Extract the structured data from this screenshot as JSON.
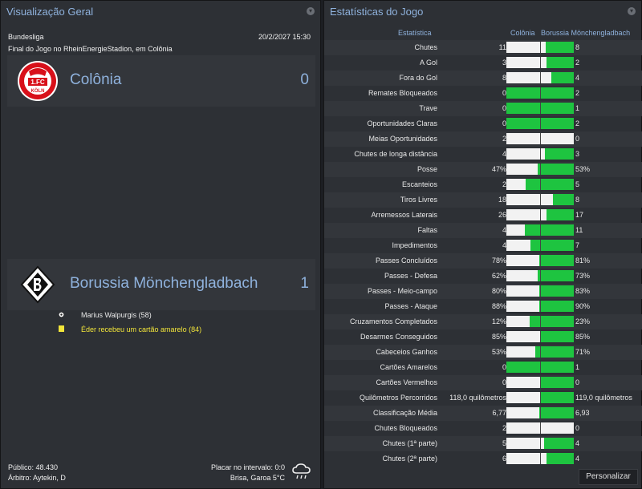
{
  "overview": {
    "title": "Visualização Geral",
    "competition": "Bundesliga",
    "datetime": "20/2/2027 15:30",
    "venue": "Final do Jogo no RheinEnergieStadion, em Colônia",
    "home": {
      "name": "Colônia",
      "score": "0",
      "badge_text": "1.FC",
      "badge_sub": "KÖLN"
    },
    "away": {
      "name": "Borussia Mönchengladbach",
      "score": "1"
    },
    "events": [
      {
        "icon": "ball-icon",
        "text": "Marius Walpurgis (58)",
        "color": "#f0f0f0"
      },
      {
        "icon": "yellow-card-icon",
        "text": "Éder recebeu um cartão amarelo (84)",
        "color": "#f2e53a"
      }
    ],
    "attendance": "Público: 48.430",
    "referee": "Árbitro: Aytekin, D",
    "halftime": "Placar no intervalo: 0:0",
    "weather": "Brisa, Garoa 5°C"
  },
  "stats": {
    "title": "Estatísticas do Jogo",
    "col_stat": "Estatística",
    "col_home": "Colônia",
    "col_away": "Borussia Mönchengladbach",
    "button": "Personalizar",
    "home_color": "#f2f2f2",
    "away_color": "#1ec440",
    "rows": [
      {
        "label": "Chutes",
        "home": "11",
        "away": "8",
        "share": 0.42
      },
      {
        "label": "A Gol",
        "home": "3",
        "away": "2",
        "share": 0.4
      },
      {
        "label": "Fora do Gol",
        "home": "8",
        "away": "4",
        "share": 0.33
      },
      {
        "label": "Remates Bloqueados",
        "home": "0",
        "away": "2",
        "share": 1.0
      },
      {
        "label": "Trave",
        "home": "0",
        "away": "1",
        "share": 1.0
      },
      {
        "label": "Oportunidades Claras",
        "home": "0",
        "away": "2",
        "share": 1.0
      },
      {
        "label": "Meias Oportunidades",
        "home": "2",
        "away": "0",
        "share": 0.0
      },
      {
        "label": "Chutes de longa distância",
        "home": "4",
        "away": "3",
        "share": 0.43
      },
      {
        "label": "Posse",
        "home": "47%",
        "away": "53%",
        "share": 0.53
      },
      {
        "label": "Escanteios",
        "home": "2",
        "away": "5",
        "share": 0.71
      },
      {
        "label": "Tiros Livres",
        "home": "18",
        "away": "8",
        "share": 0.31
      },
      {
        "label": "Arremessos Laterais",
        "home": "26",
        "away": "17",
        "share": 0.4
      },
      {
        "label": "Faltas",
        "home": "4",
        "away": "11",
        "share": 0.73
      },
      {
        "label": "Impedimentos",
        "home": "4",
        "away": "7",
        "share": 0.64
      },
      {
        "label": "Passes Concluídos",
        "home": "78%",
        "away": "81%",
        "share": 0.51
      },
      {
        "label": "Passes - Defesa",
        "home": "62%",
        "away": "73%",
        "share": 0.54
      },
      {
        "label": "Passes - Meio-campo",
        "home": "80%",
        "away": "83%",
        "share": 0.51
      },
      {
        "label": "Passes - Ataque",
        "home": "88%",
        "away": "90%",
        "share": 0.51
      },
      {
        "label": "Cruzamentos Completados",
        "home": "12%",
        "away": "23%",
        "share": 0.66
      },
      {
        "label": "Desarmes Conseguidos",
        "home": "85%",
        "away": "85%",
        "share": 0.5
      },
      {
        "label": "Cabeceios Ganhos",
        "home": "53%",
        "away": "71%",
        "share": 0.57
      },
      {
        "label": "Cartões Amarelos",
        "home": "0",
        "away": "1",
        "share": 1.0
      },
      {
        "label": "Cartões Vermelhos",
        "home": "0",
        "away": "0",
        "share": 0.5
      },
      {
        "label": "Quilômetros Percorridos",
        "home": "118,0 quilômetros",
        "away": "119,0 quilômetros",
        "share": 0.5
      },
      {
        "label": "Classificação Média",
        "home": "6,77",
        "away": "6,93",
        "share": 0.51
      },
      {
        "label": "Chutes Bloqueados",
        "home": "2",
        "away": "0",
        "share": 0.0
      },
      {
        "label": "Chutes (1ª parte)",
        "home": "5",
        "away": "4",
        "share": 0.44
      },
      {
        "label": "Chutes (2ª parte)",
        "home": "6",
        "away": "4",
        "share": 0.4
      }
    ]
  }
}
